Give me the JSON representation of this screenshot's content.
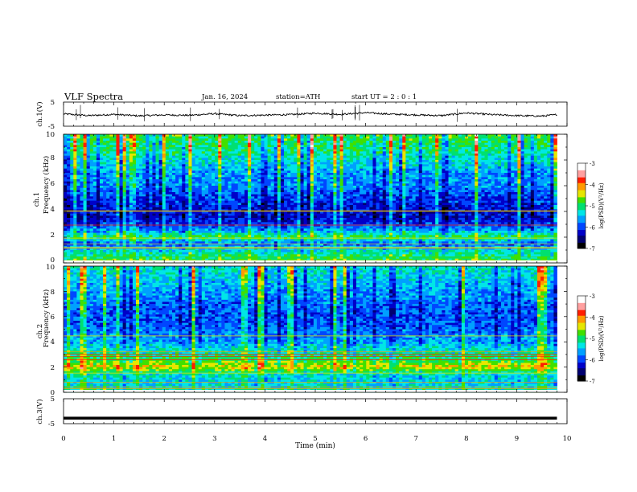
{
  "header": {
    "title": "VLF  Spectra",
    "date": "Jan. 16, 2024",
    "station": "station=ATH",
    "start": "start  UT  =   2 : 0  : 1"
  },
  "colors": {
    "background": "#ffffff",
    "axis": "#000000",
    "trace": "#000000",
    "colormap": [
      "#000000",
      "#000070",
      "#0000c8",
      "#0046ff",
      "#00a0ff",
      "#00e6e6",
      "#00e070",
      "#40e000",
      "#e6e600",
      "#ff9a00",
      "#ff1e00",
      "#ffa0a0",
      "#ffffff"
    ]
  },
  "chart_data": [
    {
      "type": "line",
      "name": "ch1-waveform",
      "ylabel": "ch.1(V)",
      "ylim": [
        -5,
        5
      ],
      "yticks": [
        "5",
        "-5"
      ],
      "x_range": [
        0,
        10
      ],
      "data_end_x": 9.8,
      "baseline": 0,
      "points_x": [
        0,
        0.5,
        1,
        1.5,
        2,
        2.5,
        3,
        3.5,
        4,
        4.5,
        5,
        5.5,
        6,
        6.5,
        7,
        7.5,
        8,
        8.5,
        9,
        9.5,
        9.8
      ],
      "points_y": [
        0.1,
        -0.6,
        -0.1,
        -0.7,
        -0.3,
        -0.5,
        0.2,
        -0.6,
        -0.4,
        -0.2,
        0.4,
        -0.1,
        0.6,
        0.0,
        -0.3,
        -0.6,
        0.5,
        -0.2,
        -0.6,
        -0.8,
        -0.2
      ]
    },
    {
      "type": "heatmap",
      "name": "ch1-spectrogram",
      "ylabel": "ch.1\nFrequency  (kHz)",
      "ylim": [
        0,
        10
      ],
      "yticks": [
        "0",
        "2",
        "4",
        "6",
        "8",
        "10"
      ],
      "x_range": [
        0,
        10
      ],
      "data_end_x": 9.8,
      "colorbar": {
        "label": "log(PSD)(V²/Hz)",
        "range": [
          -7,
          -3
        ],
        "ticks": [
          "-3",
          "-4",
          "-5",
          "-6",
          "-7"
        ]
      },
      "profile_khz": [
        0,
        0.5,
        1,
        1.5,
        2,
        2.5,
        3,
        3.5,
        4,
        5,
        6,
        7,
        8,
        9,
        10
      ],
      "profile_logpsd": [
        -4.7,
        -5.0,
        -5.3,
        -5.9,
        -4.8,
        -5.6,
        -6.0,
        -6.2,
        -6.2,
        -6.0,
        -5.7,
        -5.6,
        -5.3,
        -5.0,
        -4.8
      ]
    },
    {
      "type": "heatmap",
      "name": "ch2-spectrogram",
      "ylabel": "ch.2\nFrequency  (kHz)",
      "ylim": [
        0,
        10
      ],
      "yticks": [
        "0",
        "2",
        "4",
        "6",
        "8",
        "10"
      ],
      "x_range": [
        0,
        10
      ],
      "data_end_x": 9.8,
      "colorbar": {
        "label": "log(PSD)(V²/Hz)",
        "range": [
          -7,
          -3
        ],
        "ticks": [
          "-3",
          "-4",
          "-5",
          "-6",
          "-7"
        ]
      },
      "profile_khz": [
        0,
        0.5,
        1,
        1.5,
        2,
        2.5,
        3,
        3.5,
        4,
        5,
        6,
        7,
        8,
        9,
        10
      ],
      "profile_logpsd": [
        -5.0,
        -5.3,
        -5.4,
        -5.2,
        -4.3,
        -4.8,
        -5.1,
        -5.3,
        -5.6,
        -5.8,
        -5.9,
        -5.8,
        -5.6,
        -5.4,
        -5.2
      ]
    },
    {
      "type": "line",
      "name": "ch3-waveform",
      "ylabel": "ch.3(V)",
      "ylim": [
        -5,
        5
      ],
      "yticks": [
        "5",
        "-5"
      ],
      "x_range": [
        0,
        10
      ],
      "data_end_x": 9.8,
      "baseline": -2.8
    }
  ],
  "x_axis": {
    "label": "Time  (min)",
    "ticks": [
      "0",
      "1",
      "2",
      "3",
      "4",
      "5",
      "6",
      "7",
      "8",
      "9",
      "10"
    ]
  }
}
